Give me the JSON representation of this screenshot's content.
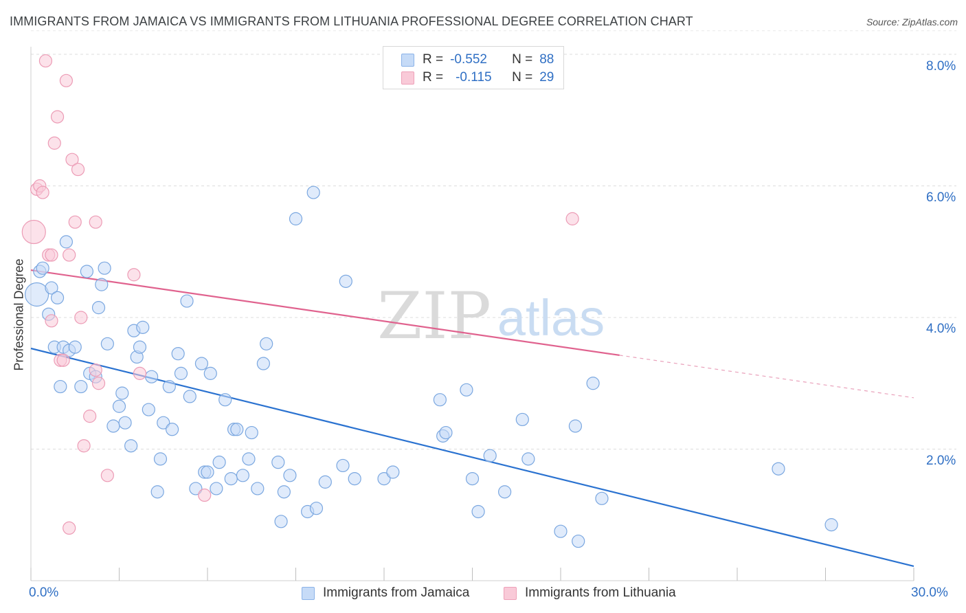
{
  "title": "IMMIGRANTS FROM JAMAICA VS IMMIGRANTS FROM LITHUANIA PROFESSIONAL DEGREE CORRELATION CHART",
  "source": "Source: ZipAtlas.com",
  "watermark": {
    "zip": "ZIP",
    "atlas": "atlas"
  },
  "legend": {
    "r_label": "R =",
    "n_label": "N =",
    "rows": [
      {
        "r": "-0.552",
        "n": "88",
        "color": "#a9c8f2"
      },
      {
        "r": "-0.115",
        "n": "29",
        "color": "#f7b8cb"
      }
    ]
  },
  "x_tick_labels": {
    "min": "0.0%",
    "max": "30.0%"
  },
  "y_tick_labels": [
    "2.0%",
    "4.0%",
    "6.0%",
    "8.0%"
  ],
  "colors": {
    "blue": "#2a72d0",
    "blue_fill": "#c6dbf7",
    "pink": "#e0628e",
    "pink_fill": "#f9cad8",
    "axis_text": "#2f6fc4"
  },
  "chart_data": {
    "type": "scatter",
    "title": "IMMIGRANTS FROM JAMAICA VS IMMIGRANTS FROM LITHUANIA PROFESSIONAL DEGREE CORRELATION CHART",
    "xlabel": "",
    "ylabel": "Professional Degree",
    "xlim": [
      0,
      30
    ],
    "ylim": [
      0,
      8.4
    ],
    "grid": true,
    "legend_position": "bottom",
    "y_ticks": [
      2,
      4,
      6,
      8
    ],
    "series": [
      {
        "name": "Immigrants from Jamaica",
        "r": -0.552,
        "n": 88,
        "trend": {
          "x": [
            0,
            30
          ],
          "y": [
            3.53,
            0.22
          ],
          "dashed_after": null
        },
        "points": [
          [
            0.2,
            4.35
          ],
          [
            0.3,
            4.7
          ],
          [
            0.4,
            4.75
          ],
          [
            0.6,
            4.05
          ],
          [
            0.7,
            4.45
          ],
          [
            0.9,
            4.3
          ],
          [
            0.8,
            3.55
          ],
          [
            1.0,
            2.95
          ],
          [
            1.1,
            3.55
          ],
          [
            1.3,
            3.5
          ],
          [
            1.5,
            3.55
          ],
          [
            1.7,
            2.95
          ],
          [
            1.2,
            5.15
          ],
          [
            1.9,
            4.7
          ],
          [
            2.0,
            3.15
          ],
          [
            2.2,
            3.1
          ],
          [
            2.3,
            4.15
          ],
          [
            2.4,
            4.5
          ],
          [
            2.5,
            4.75
          ],
          [
            2.6,
            3.6
          ],
          [
            2.8,
            2.35
          ],
          [
            3.0,
            2.65
          ],
          [
            3.1,
            2.85
          ],
          [
            3.2,
            2.4
          ],
          [
            3.4,
            2.05
          ],
          [
            3.5,
            3.8
          ],
          [
            3.6,
            3.4
          ],
          [
            3.7,
            3.55
          ],
          [
            3.8,
            3.85
          ],
          [
            4.0,
            2.6
          ],
          [
            4.1,
            3.1
          ],
          [
            4.3,
            1.35
          ],
          [
            4.4,
            1.85
          ],
          [
            4.5,
            2.4
          ],
          [
            4.7,
            2.95
          ],
          [
            4.8,
            2.3
          ],
          [
            5.0,
            3.45
          ],
          [
            5.1,
            3.15
          ],
          [
            5.3,
            4.25
          ],
          [
            5.4,
            2.8
          ],
          [
            5.6,
            1.4
          ],
          [
            5.8,
            3.3
          ],
          [
            5.9,
            1.65
          ],
          [
            6.0,
            1.65
          ],
          [
            6.1,
            3.15
          ],
          [
            6.3,
            1.4
          ],
          [
            6.4,
            1.8
          ],
          [
            6.6,
            2.75
          ],
          [
            6.8,
            1.55
          ],
          [
            6.9,
            2.3
          ],
          [
            7.0,
            2.3
          ],
          [
            7.2,
            1.6
          ],
          [
            7.4,
            1.85
          ],
          [
            7.5,
            2.25
          ],
          [
            7.7,
            1.4
          ],
          [
            7.9,
            3.3
          ],
          [
            8.0,
            3.6
          ],
          [
            8.4,
            1.8
          ],
          [
            8.5,
            0.9
          ],
          [
            8.6,
            1.35
          ],
          [
            8.8,
            1.6
          ],
          [
            9.0,
            5.5
          ],
          [
            9.4,
            1.05
          ],
          [
            9.7,
            1.1
          ],
          [
            9.6,
            5.9
          ],
          [
            10.0,
            1.5
          ],
          [
            10.7,
            4.55
          ],
          [
            10.6,
            1.75
          ],
          [
            11.0,
            1.55
          ],
          [
            12.0,
            1.55
          ],
          [
            12.3,
            1.65
          ],
          [
            13.9,
            2.75
          ],
          [
            14.0,
            2.2
          ],
          [
            14.1,
            2.25
          ],
          [
            14.8,
            2.9
          ],
          [
            15.0,
            1.55
          ],
          [
            15.2,
            1.05
          ],
          [
            15.6,
            1.9
          ],
          [
            16.1,
            1.35
          ],
          [
            16.7,
            2.45
          ],
          [
            16.9,
            1.85
          ],
          [
            18.0,
            0.75
          ],
          [
            18.5,
            2.35
          ],
          [
            18.6,
            0.6
          ],
          [
            19.1,
            3.0
          ],
          [
            19.4,
            1.25
          ],
          [
            25.4,
            1.7
          ],
          [
            27.2,
            0.85
          ]
        ],
        "large_points": [
          [
            0.2,
            4.35
          ]
        ]
      },
      {
        "name": "Immigrants from Lithuania",
        "r": -0.115,
        "n": 29,
        "trend": {
          "x": [
            0,
            30
          ],
          "y": [
            4.72,
            2.78
          ],
          "solid_until": 20
        },
        "points": [
          [
            0.1,
            5.3
          ],
          [
            0.2,
            5.95
          ],
          [
            0.3,
            6.0
          ],
          [
            0.4,
            5.9
          ],
          [
            0.5,
            7.9
          ],
          [
            0.6,
            4.95
          ],
          [
            0.7,
            4.95
          ],
          [
            0.8,
            6.65
          ],
          [
            0.7,
            3.95
          ],
          [
            0.9,
            7.05
          ],
          [
            1.0,
            3.35
          ],
          [
            1.1,
            3.35
          ],
          [
            1.2,
            7.6
          ],
          [
            1.3,
            4.95
          ],
          [
            1.4,
            6.4
          ],
          [
            1.5,
            5.45
          ],
          [
            1.6,
            6.25
          ],
          [
            1.7,
            4.0
          ],
          [
            1.8,
            2.05
          ],
          [
            2.0,
            2.5
          ],
          [
            2.2,
            3.2
          ],
          [
            2.2,
            5.45
          ],
          [
            2.3,
            3.0
          ],
          [
            2.6,
            1.6
          ],
          [
            3.5,
            4.65
          ],
          [
            3.7,
            3.15
          ],
          [
            1.3,
            0.8
          ],
          [
            5.9,
            1.3
          ],
          [
            18.4,
            5.5
          ]
        ],
        "large_points": [
          [
            0.1,
            5.3
          ]
        ]
      }
    ]
  },
  "bottom_legend": [
    "Immigrants from Jamaica",
    "Immigrants from Lithuania"
  ]
}
